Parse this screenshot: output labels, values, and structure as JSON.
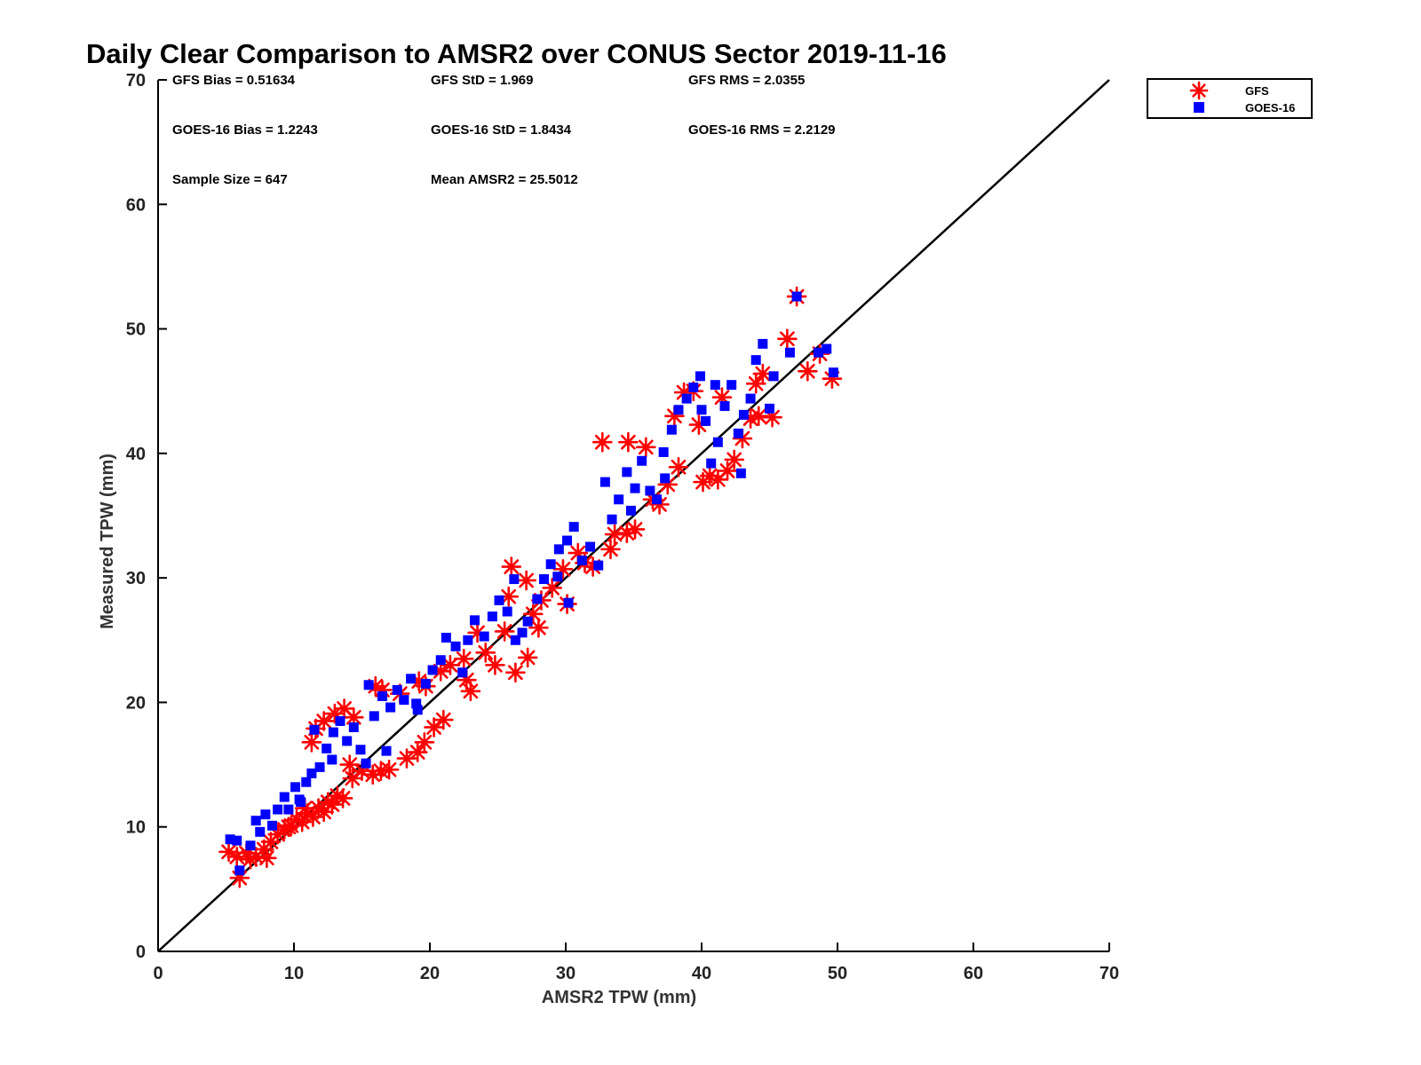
{
  "chart_data": {
    "type": "scatter",
    "title": "Daily Clear Comparison to AMSR2 over CONUS Sector 2019-11-16",
    "xlabel": "AMSR2 TPW (mm)",
    "ylabel": "Measured TPW (mm)",
    "xlim": [
      0,
      70
    ],
    "ylim": [
      0,
      70
    ],
    "xticks": [
      "0",
      "10",
      "20",
      "30",
      "40",
      "50",
      "60",
      "70"
    ],
    "yticks": [
      "0",
      "10",
      "20",
      "30",
      "40",
      "50",
      "60",
      "70"
    ],
    "grid": false,
    "legend_position": "top-right, outside plot",
    "reference_line": {
      "x": [
        0,
        70
      ],
      "y": [
        0,
        70
      ],
      "color": "#000000"
    },
    "stats": [
      [
        "GFS Bias = 0.51634",
        "GFS StD = 1.969",
        "GFS RMS = 2.0355"
      ],
      [
        "GOES-16 Bias = 1.2243",
        "GOES-16 StD = 1.8434",
        "GOES-16 RMS = 2.2129"
      ],
      [
        "Sample Size = 647",
        "Mean AMSR2 = 25.5012"
      ]
    ],
    "series": [
      {
        "name": "GFS",
        "marker": "asterisk",
        "color": "#ff0000",
        "points": [
          [
            5.2,
            8.0
          ],
          [
            5.8,
            7.6
          ],
          [
            6.0,
            5.9
          ],
          [
            6.5,
            7.9
          ],
          [
            7.2,
            7.6
          ],
          [
            7.8,
            8.2
          ],
          [
            8.3,
            8.8
          ],
          [
            8.8,
            9.4
          ],
          [
            9.3,
            9.8
          ],
          [
            9.8,
            10.1
          ],
          [
            10.2,
            10.6
          ],
          [
            10.6,
            10.4
          ],
          [
            11.0,
            11.1
          ],
          [
            11.4,
            10.8
          ],
          [
            11.8,
            11.5
          ],
          [
            12.2,
            11.2
          ],
          [
            12.5,
            12.0
          ],
          [
            12.8,
            11.8
          ],
          [
            13.2,
            12.5
          ],
          [
            13.6,
            12.3
          ],
          [
            11.3,
            16.8
          ],
          [
            11.6,
            17.9
          ],
          [
            12.2,
            18.5
          ],
          [
            13.0,
            19.1
          ],
          [
            13.7,
            19.5
          ],
          [
            14.4,
            18.8
          ],
          [
            14.1,
            15.0
          ],
          [
            15.0,
            14.5
          ],
          [
            15.8,
            14.2
          ],
          [
            16.4,
            14.5
          ],
          [
            17.0,
            14.6
          ],
          [
            16.0,
            21.3
          ],
          [
            16.5,
            21.0
          ],
          [
            17.8,
            20.7
          ],
          [
            18.3,
            15.5
          ],
          [
            19.1,
            16.0
          ],
          [
            19.6,
            16.8
          ],
          [
            20.3,
            18.0
          ],
          [
            21.0,
            18.6
          ],
          [
            19.2,
            21.7
          ],
          [
            19.7,
            21.3
          ],
          [
            20.8,
            22.5
          ],
          [
            21.5,
            23.0
          ],
          [
            22.5,
            23.5
          ],
          [
            23.0,
            20.9
          ],
          [
            24.8,
            23.0
          ],
          [
            26.3,
            22.4
          ],
          [
            27.2,
            23.6
          ],
          [
            28.0,
            26.0
          ],
          [
            25.5,
            25.7
          ],
          [
            23.5,
            25.6
          ],
          [
            25.8,
            28.5
          ],
          [
            26.0,
            30.9
          ],
          [
            27.1,
            29.8
          ],
          [
            27.6,
            27.1
          ],
          [
            28.2,
            28.2
          ],
          [
            29.0,
            29.2
          ],
          [
            29.8,
            30.7
          ],
          [
            30.1,
            27.9
          ],
          [
            30.9,
            32.0
          ],
          [
            31.4,
            31.2
          ],
          [
            32.0,
            30.9
          ],
          [
            32.7,
            40.9
          ],
          [
            33.6,
            33.5
          ],
          [
            34.6,
            40.9
          ],
          [
            35.1,
            33.9
          ],
          [
            35.9,
            40.5
          ],
          [
            36.4,
            36.3
          ],
          [
            36.9,
            35.9
          ],
          [
            37.5,
            37.5
          ],
          [
            38.0,
            43.0
          ],
          [
            38.3,
            38.9
          ],
          [
            38.7,
            44.9
          ],
          [
            39.4,
            45.0
          ],
          [
            40.1,
            37.7
          ],
          [
            40.6,
            38.2
          ],
          [
            41.2,
            37.9
          ],
          [
            41.9,
            38.6
          ],
          [
            42.4,
            39.5
          ],
          [
            43.0,
            41.2
          ],
          [
            43.6,
            42.8
          ],
          [
            44.2,
            43.0
          ],
          [
            44.5,
            46.4
          ],
          [
            45.2,
            42.9
          ],
          [
            46.3,
            49.2
          ],
          [
            47.0,
            52.6
          ],
          [
            47.8,
            46.6
          ],
          [
            48.7,
            48.0
          ],
          [
            49.6,
            46.0
          ],
          [
            44.0,
            45.6
          ],
          [
            41.5,
            44.5
          ],
          [
            39.8,
            42.3
          ],
          [
            34.5,
            33.6
          ],
          [
            33.3,
            32.3
          ],
          [
            22.7,
            21.8
          ],
          [
            24.1,
            24.0
          ],
          [
            14.3,
            13.9
          ],
          [
            8.0,
            7.5
          ],
          [
            9.6,
            10.0
          ],
          [
            10.8,
            11.5
          ],
          [
            6.8,
            7.4
          ]
        ]
      },
      {
        "name": "GOES-16",
        "marker": "square",
        "color": "#0000ff",
        "points": [
          [
            5.3,
            9.0
          ],
          [
            5.8,
            8.9
          ],
          [
            6.0,
            6.5
          ],
          [
            6.8,
            8.5
          ],
          [
            7.2,
            10.5
          ],
          [
            7.5,
            9.6
          ],
          [
            7.9,
            11.0
          ],
          [
            8.4,
            10.1
          ],
          [
            8.8,
            11.4
          ],
          [
            9.3,
            12.4
          ],
          [
            9.6,
            11.4
          ],
          [
            10.1,
            13.2
          ],
          [
            10.4,
            12.2
          ],
          [
            10.9,
            13.6
          ],
          [
            11.3,
            14.3
          ],
          [
            11.5,
            17.8
          ],
          [
            11.9,
            14.8
          ],
          [
            12.4,
            16.3
          ],
          [
            12.9,
            17.6
          ],
          [
            13.4,
            18.5
          ],
          [
            13.9,
            16.9
          ],
          [
            14.4,
            18.0
          ],
          [
            14.9,
            16.2
          ],
          [
            15.3,
            15.1
          ],
          [
            15.9,
            18.9
          ],
          [
            16.5,
            20.5
          ],
          [
            17.1,
            19.6
          ],
          [
            17.6,
            21.0
          ],
          [
            18.1,
            20.2
          ],
          [
            18.6,
            21.9
          ],
          [
            19.1,
            19.4
          ],
          [
            19.7,
            21.5
          ],
          [
            20.2,
            22.6
          ],
          [
            20.8,
            23.4
          ],
          [
            21.2,
            25.2
          ],
          [
            21.9,
            24.5
          ],
          [
            22.4,
            22.4
          ],
          [
            22.8,
            25.0
          ],
          [
            23.3,
            26.6
          ],
          [
            24.0,
            25.3
          ],
          [
            24.6,
            26.9
          ],
          [
            25.1,
            28.2
          ],
          [
            25.7,
            27.3
          ],
          [
            26.2,
            29.9
          ],
          [
            26.8,
            25.6
          ],
          [
            27.2,
            26.5
          ],
          [
            27.9,
            28.3
          ],
          [
            28.4,
            29.9
          ],
          [
            28.9,
            31.1
          ],
          [
            29.5,
            32.3
          ],
          [
            30.1,
            33.0
          ],
          [
            30.6,
            34.1
          ],
          [
            31.2,
            31.4
          ],
          [
            31.8,
            32.5
          ],
          [
            32.4,
            31.0
          ],
          [
            32.9,
            37.7
          ],
          [
            33.4,
            34.7
          ],
          [
            33.9,
            36.3
          ],
          [
            34.5,
            38.5
          ],
          [
            35.1,
            37.2
          ],
          [
            35.6,
            39.4
          ],
          [
            36.2,
            37.0
          ],
          [
            36.7,
            36.3
          ],
          [
            37.2,
            40.1
          ],
          [
            37.8,
            41.9
          ],
          [
            38.3,
            43.5
          ],
          [
            38.9,
            44.4
          ],
          [
            39.4,
            45.3
          ],
          [
            39.9,
            46.2
          ],
          [
            40.3,
            42.6
          ],
          [
            40.7,
            39.2
          ],
          [
            41.2,
            40.9
          ],
          [
            41.7,
            43.8
          ],
          [
            42.2,
            45.5
          ],
          [
            42.7,
            41.6
          ],
          [
            43.1,
            43.1
          ],
          [
            43.6,
            44.4
          ],
          [
            44.0,
            47.5
          ],
          [
            44.5,
            48.8
          ],
          [
            45.0,
            43.6
          ],
          [
            45.3,
            46.2
          ],
          [
            46.5,
            48.1
          ],
          [
            47.0,
            52.6
          ],
          [
            48.6,
            48.1
          ],
          [
            49.2,
            48.4
          ],
          [
            49.7,
            46.5
          ],
          [
            30.2,
            28.0
          ],
          [
            26.3,
            25.0
          ],
          [
            19.0,
            19.9
          ],
          [
            16.8,
            16.1
          ],
          [
            15.5,
            21.4
          ],
          [
            12.8,
            15.4
          ],
          [
            10.5,
            12.0
          ],
          [
            40.0,
            43.5
          ],
          [
            41.0,
            45.5
          ],
          [
            42.9,
            38.4
          ],
          [
            34.8,
            35.4
          ],
          [
            37.3,
            38.0
          ],
          [
            29.4,
            30.1
          ]
        ]
      }
    ]
  }
}
